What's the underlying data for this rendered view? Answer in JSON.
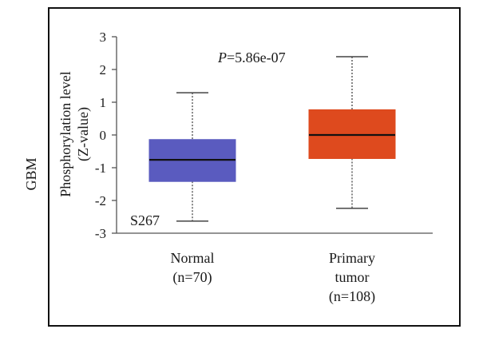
{
  "figure": {
    "side_label": "GBM"
  },
  "chart_data": {
    "type": "box",
    "ylabel": [
      "Phosphorylation level",
      "(Z-value)"
    ],
    "ylim": [
      -3,
      3
    ],
    "yticks": [
      3,
      2,
      1,
      0,
      -1,
      -2,
      -3
    ],
    "annotation": {
      "p_italic": "P",
      "p_rest": "=5.86e-07"
    },
    "site_label": "S267",
    "categories": [
      {
        "label": [
          "Normal",
          "(n=70)"
        ]
      },
      {
        "label": [
          "Primary",
          "tumor",
          "(n=108)"
        ]
      }
    ],
    "series": [
      {
        "category": "Normal",
        "min": -2.63,
        "q1": -1.42,
        "median": -0.76,
        "q3": -0.14,
        "max": 1.29,
        "color": "#5a5bbf"
      },
      {
        "category": "Primary tumor",
        "min": -2.24,
        "q1": -0.72,
        "median": 0.0,
        "q3": 0.77,
        "max": 2.39,
        "color": "#de4a1e"
      }
    ]
  }
}
